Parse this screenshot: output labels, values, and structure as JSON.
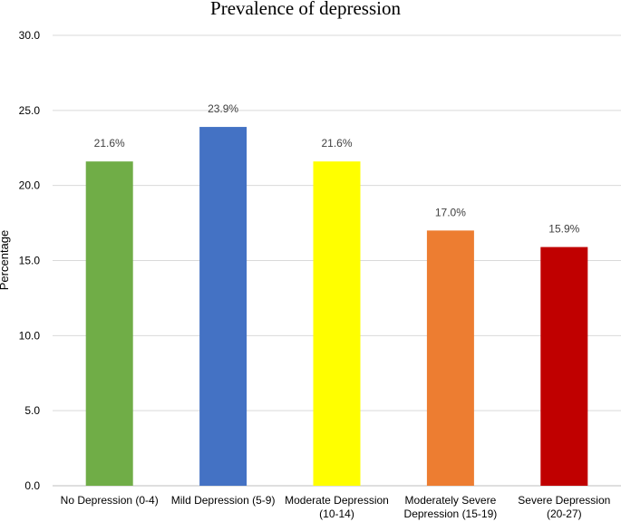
{
  "chart_data": {
    "type": "bar",
    "title": "Prevalence of depression",
    "xlabel": "",
    "ylabel": "Percentage",
    "ylim": [
      0,
      30
    ],
    "yticks": [
      "0.0",
      "5.0",
      "10.0",
      "15.0",
      "20.0",
      "25.0",
      "30.0"
    ],
    "grid": true,
    "legend": "none",
    "categories": [
      [
        "No Depression (0-4)"
      ],
      [
        "Mild Depression (5-9)"
      ],
      [
        "Moderate Depression",
        "(10-14)"
      ],
      [
        "Moderately Severe",
        "Depression (15-19)"
      ],
      [
        "Severe Depression",
        "(20-27)"
      ]
    ],
    "values": [
      21.6,
      23.9,
      21.6,
      17.0,
      15.9
    ],
    "data_labels": [
      "21.6%",
      "23.9%",
      "21.6%",
      "17.0%",
      "15.9%"
    ],
    "colors": [
      "#70ad47",
      "#4472c4",
      "#ffff00",
      "#ed7d31",
      "#c00000"
    ]
  }
}
